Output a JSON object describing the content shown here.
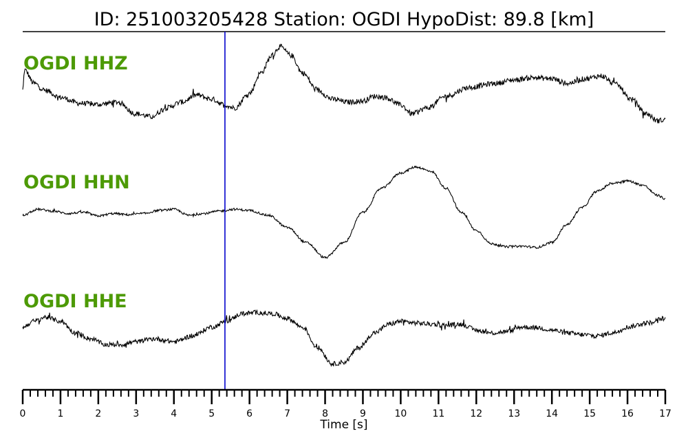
{
  "header": {
    "title": "ID: 251003205428   Station: OGDI   HypoDist:    89.8 [km]"
  },
  "colors": {
    "trace": "#000000",
    "label": "#4d9a06",
    "marker": "#0000cc",
    "axis": "#000000"
  },
  "chart_data": {
    "type": "line",
    "title": "ID: 251003205428   Station: OGDI   HypoDist:    89.8 [km]",
    "xlabel": "Time [s]",
    "ylabel": "",
    "xlim": [
      0,
      17
    ],
    "x_ticks": [
      "0",
      "1",
      "2",
      "3",
      "4",
      "5",
      "6",
      "7",
      "8",
      "9",
      "10",
      "11",
      "12",
      "13",
      "14",
      "15",
      "16",
      "17"
    ],
    "minor_tick_step": 0.2,
    "marker_line_x": 5.35,
    "grid": false,
    "series": [
      {
        "name": "OGDI HHZ",
        "noise": 0.045,
        "points": [
          [
            0,
            0.1
          ],
          [
            0.05,
            0.45
          ],
          [
            0.3,
            0.22
          ],
          [
            0.6,
            0.1
          ],
          [
            1.0,
            -0.02
          ],
          [
            1.5,
            -0.12
          ],
          [
            2.0,
            -0.14
          ],
          [
            2.5,
            -0.1
          ],
          [
            3.0,
            -0.3
          ],
          [
            3.4,
            -0.35
          ],
          [
            3.8,
            -0.2
          ],
          [
            4.2,
            -0.1
          ],
          [
            4.6,
            0.02
          ],
          [
            5.0,
            -0.05
          ],
          [
            5.35,
            -0.15
          ],
          [
            5.6,
            -0.2
          ],
          [
            6.0,
            0.05
          ],
          [
            6.3,
            0.4
          ],
          [
            6.6,
            0.7
          ],
          [
            6.8,
            0.85
          ],
          [
            7.1,
            0.7
          ],
          [
            7.4,
            0.4
          ],
          [
            7.8,
            0.1
          ],
          [
            8.2,
            -0.05
          ],
          [
            8.6,
            -0.1
          ],
          [
            9.0,
            -0.08
          ],
          [
            9.3,
            0.0
          ],
          [
            9.6,
            -0.02
          ],
          [
            10.0,
            -0.15
          ],
          [
            10.3,
            -0.3
          ],
          [
            10.7,
            -0.2
          ],
          [
            11.2,
            0.0
          ],
          [
            11.8,
            0.15
          ],
          [
            12.5,
            0.22
          ],
          [
            13.0,
            0.28
          ],
          [
            13.5,
            0.32
          ],
          [
            14.0,
            0.3
          ],
          [
            14.4,
            0.22
          ],
          [
            14.9,
            0.3
          ],
          [
            15.3,
            0.35
          ],
          [
            15.7,
            0.2
          ],
          [
            16.1,
            -0.05
          ],
          [
            16.5,
            -0.3
          ],
          [
            16.8,
            -0.42
          ],
          [
            17.0,
            -0.4
          ]
        ]
      },
      {
        "name": "OGDI HHN",
        "noise": 0.018,
        "points": [
          [
            0,
            -0.15
          ],
          [
            0.4,
            -0.05
          ],
          [
            0.8,
            -0.08
          ],
          [
            1.2,
            -0.12
          ],
          [
            1.6,
            -0.1
          ],
          [
            2.0,
            -0.16
          ],
          [
            2.4,
            -0.12
          ],
          [
            2.8,
            -0.14
          ],
          [
            3.2,
            -0.12
          ],
          [
            3.6,
            -0.07
          ],
          [
            4.0,
            -0.05
          ],
          [
            4.4,
            -0.15
          ],
          [
            4.8,
            -0.12
          ],
          [
            5.2,
            -0.08
          ],
          [
            5.6,
            -0.05
          ],
          [
            6.0,
            -0.07
          ],
          [
            6.5,
            -0.15
          ],
          [
            7.0,
            -0.35
          ],
          [
            7.5,
            -0.6
          ],
          [
            8.0,
            -0.85
          ],
          [
            8.5,
            -0.6
          ],
          [
            9.0,
            -0.1
          ],
          [
            9.5,
            0.3
          ],
          [
            10.0,
            0.55
          ],
          [
            10.4,
            0.65
          ],
          [
            10.8,
            0.58
          ],
          [
            11.2,
            0.3
          ],
          [
            11.6,
            -0.1
          ],
          [
            12.0,
            -0.4
          ],
          [
            12.4,
            -0.62
          ],
          [
            12.8,
            -0.67
          ],
          [
            13.2,
            -0.66
          ],
          [
            13.6,
            -0.68
          ],
          [
            14.0,
            -0.6
          ],
          [
            14.4,
            -0.3
          ],
          [
            14.8,
            -0.02
          ],
          [
            15.2,
            0.25
          ],
          [
            15.6,
            0.38
          ],
          [
            16.0,
            0.42
          ],
          [
            16.4,
            0.35
          ],
          [
            16.8,
            0.18
          ],
          [
            17.0,
            0.12
          ]
        ]
      },
      {
        "name": "OGDI HHE",
        "noise": 0.04,
        "points": [
          [
            0,
            0.05
          ],
          [
            0.3,
            0.15
          ],
          [
            0.6,
            0.22
          ],
          [
            1.0,
            0.15
          ],
          [
            1.4,
            -0.05
          ],
          [
            1.8,
            -0.15
          ],
          [
            2.2,
            -0.25
          ],
          [
            2.6,
            -0.25
          ],
          [
            3.0,
            -0.2
          ],
          [
            3.5,
            -0.15
          ],
          [
            4.0,
            -0.2
          ],
          [
            4.5,
            -0.1
          ],
          [
            5.0,
            0.05
          ],
          [
            5.4,
            0.15
          ],
          [
            5.8,
            0.28
          ],
          [
            6.2,
            0.3
          ],
          [
            6.6,
            0.28
          ],
          [
            7.0,
            0.2
          ],
          [
            7.4,
            0.05
          ],
          [
            7.8,
            -0.3
          ],
          [
            8.2,
            -0.58
          ],
          [
            8.5,
            -0.55
          ],
          [
            8.9,
            -0.3
          ],
          [
            9.3,
            -0.05
          ],
          [
            9.7,
            0.1
          ],
          [
            10.0,
            0.15
          ],
          [
            10.4,
            0.12
          ],
          [
            10.8,
            0.1
          ],
          [
            11.2,
            0.08
          ],
          [
            11.6,
            0.1
          ],
          [
            12.0,
            0.0
          ],
          [
            12.4,
            -0.05
          ],
          [
            12.8,
            -0.03
          ],
          [
            13.2,
            0.05
          ],
          [
            13.6,
            0.04
          ],
          [
            14.0,
            0.0
          ],
          [
            14.4,
            -0.05
          ],
          [
            14.8,
            -0.08
          ],
          [
            15.2,
            -0.1
          ],
          [
            15.6,
            -0.05
          ],
          [
            16.0,
            0.05
          ],
          [
            16.5,
            0.12
          ],
          [
            17.0,
            0.2
          ]
        ]
      }
    ]
  }
}
